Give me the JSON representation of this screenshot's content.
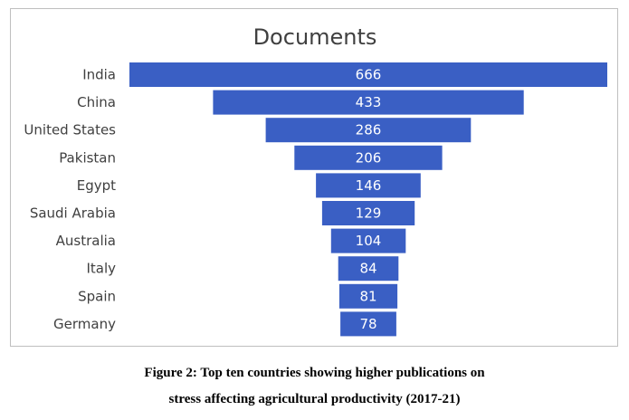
{
  "chart_data": {
    "type": "bar",
    "orientation": "horizontal",
    "style": "funnel",
    "title": "Documents",
    "categories": [
      "India",
      "China",
      "United States",
      "Pakistan",
      "Egypt",
      "Saudi Arabia",
      "Australia",
      "Italy",
      "Spain",
      "Germany"
    ],
    "values": [
      666,
      433,
      286,
      206,
      146,
      129,
      104,
      84,
      81,
      78
    ],
    "data_labels": [
      "666",
      "433",
      "286",
      "206",
      "146",
      "129",
      "104",
      "84",
      "81",
      "78"
    ],
    "bar_color": "#3a5fc4",
    "grid": false,
    "legend": "none"
  },
  "caption": {
    "line1": "Figure 2: Top ten countries showing higher publications on",
    "line2": "stress affecting agricultural productivity (2017-21)"
  }
}
